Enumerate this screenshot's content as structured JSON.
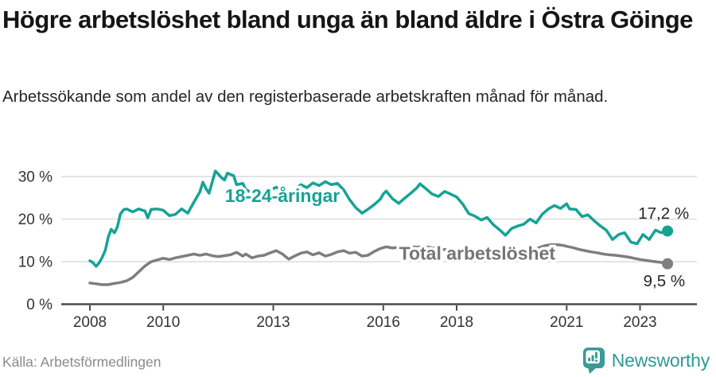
{
  "header": {
    "title": "Högre arbetslöshet bland unga än bland äldre i Östra Göinge",
    "subtitle": "Arbetssökande som andel av den registerbaserade arbetskraften månad för månad."
  },
  "footer": {
    "source": "Källa: Arbetsförmedlingen",
    "brand": "Newsworthy"
  },
  "colors": {
    "accent_teal": "#17a296",
    "line_gray": "#7e7e7e",
    "grid": "#dcdcdc",
    "axis": "#4a4a4a",
    "axis_label": "#333333",
    "end_label": "#262626",
    "logo_teal": "#3b9a94"
  },
  "chart_data": {
    "type": "line",
    "title": "",
    "xlabel": "",
    "ylabel": "",
    "x_ticks": [
      2008,
      2010,
      2013,
      2016,
      2018,
      2021,
      2023
    ],
    "y_ticks": [
      0,
      10,
      20,
      30
    ],
    "y_tick_suffix": " %",
    "xlim": [
      2008,
      2023.83
    ],
    "ylim": [
      0,
      33
    ],
    "grid": "horizontal",
    "legend_position": "inline-labels",
    "series": [
      {
        "name": "18-24-åringar",
        "color": "#17a296",
        "label": {
          "text": "18-24-åringar",
          "year": 2013.25,
          "value": 25.5,
          "color": "#17a296"
        },
        "end_label": "17,2 %",
        "end_value": 17.2,
        "points": [
          [
            2008.0,
            10.2
          ],
          [
            2008.08,
            9.8
          ],
          [
            2008.17,
            8.9
          ],
          [
            2008.25,
            9.7
          ],
          [
            2008.33,
            10.9
          ],
          [
            2008.42,
            12.7
          ],
          [
            2008.5,
            15.8
          ],
          [
            2008.58,
            17.6
          ],
          [
            2008.67,
            16.8
          ],
          [
            2008.75,
            18.2
          ],
          [
            2008.83,
            21.2
          ],
          [
            2008.92,
            22.2
          ],
          [
            2009.0,
            22.4
          ],
          [
            2009.17,
            21.7
          ],
          [
            2009.33,
            22.4
          ],
          [
            2009.5,
            21.9
          ],
          [
            2009.58,
            20.3
          ],
          [
            2009.67,
            22.3
          ],
          [
            2009.83,
            22.4
          ],
          [
            2010.0,
            22.1
          ],
          [
            2010.17,
            20.8
          ],
          [
            2010.33,
            21.1
          ],
          [
            2010.5,
            22.4
          ],
          [
            2010.67,
            21.4
          ],
          [
            2010.83,
            23.9
          ],
          [
            2011.0,
            26.4
          ],
          [
            2011.08,
            28.7
          ],
          [
            2011.17,
            27.1
          ],
          [
            2011.25,
            26.1
          ],
          [
            2011.42,
            31.3
          ],
          [
            2011.5,
            30.6
          ],
          [
            2011.58,
            29.8
          ],
          [
            2011.67,
            29.2
          ],
          [
            2011.75,
            30.8
          ],
          [
            2011.92,
            30.2
          ],
          [
            2012.0,
            28.1
          ],
          [
            2012.17,
            28.4
          ],
          [
            2012.25,
            27.0
          ],
          [
            2012.42,
            26.1
          ],
          [
            2012.58,
            26.9
          ],
          [
            2012.75,
            26.3
          ],
          [
            2012.92,
            26.9
          ],
          [
            2013.08,
            27.5
          ],
          [
            2013.25,
            26.6
          ],
          [
            2013.42,
            26.1
          ],
          [
            2013.58,
            26.8
          ],
          [
            2013.75,
            28.1
          ],
          [
            2013.92,
            27.4
          ],
          [
            2014.08,
            28.5
          ],
          [
            2014.25,
            27.9
          ],
          [
            2014.42,
            28.8
          ],
          [
            2014.58,
            28.1
          ],
          [
            2014.75,
            28.4
          ],
          [
            2014.92,
            26.9
          ],
          [
            2015.08,
            24.6
          ],
          [
            2015.25,
            22.7
          ],
          [
            2015.42,
            21.4
          ],
          [
            2015.58,
            22.3
          ],
          [
            2015.75,
            23.4
          ],
          [
            2015.92,
            24.7
          ],
          [
            2016.0,
            25.9
          ],
          [
            2016.08,
            26.6
          ],
          [
            2016.25,
            24.8
          ],
          [
            2016.42,
            23.7
          ],
          [
            2016.58,
            24.9
          ],
          [
            2016.75,
            26.1
          ],
          [
            2016.92,
            27.4
          ],
          [
            2017.0,
            28.3
          ],
          [
            2017.17,
            27.1
          ],
          [
            2017.33,
            25.9
          ],
          [
            2017.5,
            25.3
          ],
          [
            2017.67,
            26.5
          ],
          [
            2017.83,
            25.9
          ],
          [
            2018.0,
            25.2
          ],
          [
            2018.17,
            23.5
          ],
          [
            2018.33,
            21.3
          ],
          [
            2018.5,
            20.7
          ],
          [
            2018.67,
            19.8
          ],
          [
            2018.83,
            20.4
          ],
          [
            2019.0,
            18.7
          ],
          [
            2019.17,
            17.5
          ],
          [
            2019.33,
            16.2
          ],
          [
            2019.5,
            17.8
          ],
          [
            2019.67,
            18.4
          ],
          [
            2019.83,
            18.8
          ],
          [
            2020.0,
            20.0
          ],
          [
            2020.17,
            19.1
          ],
          [
            2020.33,
            21.1
          ],
          [
            2020.5,
            22.4
          ],
          [
            2020.67,
            23.2
          ],
          [
            2020.83,
            22.5
          ],
          [
            2021.0,
            23.6
          ],
          [
            2021.08,
            22.4
          ],
          [
            2021.25,
            22.3
          ],
          [
            2021.42,
            20.6
          ],
          [
            2021.58,
            21.0
          ],
          [
            2021.75,
            19.6
          ],
          [
            2021.92,
            18.4
          ],
          [
            2022.08,
            17.4
          ],
          [
            2022.25,
            15.2
          ],
          [
            2022.42,
            16.4
          ],
          [
            2022.58,
            16.8
          ],
          [
            2022.75,
            14.6
          ],
          [
            2022.92,
            14.2
          ],
          [
            2023.08,
            16.4
          ],
          [
            2023.25,
            15.2
          ],
          [
            2023.42,
            17.4
          ],
          [
            2023.58,
            16.8
          ],
          [
            2023.75,
            17.2
          ]
        ]
      },
      {
        "name": "Total arbetslöshet",
        "color": "#7e7e7e",
        "label": {
          "text": "Total arbetslöshet",
          "year": 2018.56,
          "value": 12.0,
          "color": "#757575"
        },
        "end_label": "9,5 %",
        "end_value": 9.5,
        "points": [
          [
            2008.0,
            5.0
          ],
          [
            2008.17,
            4.8
          ],
          [
            2008.33,
            4.6
          ],
          [
            2008.5,
            4.6
          ],
          [
            2008.67,
            4.9
          ],
          [
            2008.83,
            5.1
          ],
          [
            2009.0,
            5.5
          ],
          [
            2009.17,
            6.3
          ],
          [
            2009.33,
            7.6
          ],
          [
            2009.5,
            9.0
          ],
          [
            2009.67,
            10.0
          ],
          [
            2009.83,
            10.4
          ],
          [
            2010.0,
            10.8
          ],
          [
            2010.17,
            10.5
          ],
          [
            2010.33,
            10.9
          ],
          [
            2010.5,
            11.2
          ],
          [
            2010.67,
            11.5
          ],
          [
            2010.83,
            11.8
          ],
          [
            2011.0,
            11.5
          ],
          [
            2011.17,
            11.8
          ],
          [
            2011.33,
            11.4
          ],
          [
            2011.5,
            11.2
          ],
          [
            2011.67,
            11.4
          ],
          [
            2011.83,
            11.6
          ],
          [
            2012.0,
            12.2
          ],
          [
            2012.17,
            11.3
          ],
          [
            2012.25,
            11.8
          ],
          [
            2012.42,
            10.9
          ],
          [
            2012.58,
            11.3
          ],
          [
            2012.75,
            11.5
          ],
          [
            2012.92,
            12.1
          ],
          [
            2013.08,
            12.6
          ],
          [
            2013.25,
            11.8
          ],
          [
            2013.42,
            10.6
          ],
          [
            2013.58,
            11.3
          ],
          [
            2013.75,
            12.0
          ],
          [
            2013.92,
            12.3
          ],
          [
            2014.08,
            11.6
          ],
          [
            2014.25,
            12.1
          ],
          [
            2014.42,
            11.3
          ],
          [
            2014.58,
            11.7
          ],
          [
            2014.75,
            12.3
          ],
          [
            2014.92,
            12.6
          ],
          [
            2015.08,
            12.0
          ],
          [
            2015.25,
            12.2
          ],
          [
            2015.42,
            11.3
          ],
          [
            2015.58,
            11.5
          ],
          [
            2015.75,
            12.4
          ],
          [
            2015.92,
            13.1
          ],
          [
            2016.08,
            13.5
          ],
          [
            2016.25,
            13.2
          ],
          [
            2016.42,
            13.4
          ],
          [
            2016.58,
            13.6
          ],
          [
            2016.75,
            13.5
          ],
          [
            2016.92,
            13.4
          ],
          [
            2017.08,
            13.6
          ],
          [
            2017.25,
            13.4
          ],
          [
            2017.42,
            13.1
          ],
          [
            2017.58,
            12.9
          ],
          [
            2017.75,
            12.8
          ],
          [
            2017.92,
            12.6
          ],
          [
            2018.08,
            12.4
          ],
          [
            2018.25,
            12.2
          ],
          [
            2018.42,
            12.1
          ],
          [
            2018.58,
            11.9
          ],
          [
            2018.75,
            11.8
          ],
          [
            2018.92,
            11.7
          ],
          [
            2019.08,
            11.6
          ],
          [
            2019.25,
            11.5
          ],
          [
            2019.42,
            11.6
          ],
          [
            2019.58,
            11.8
          ],
          [
            2019.75,
            12.0
          ],
          [
            2019.92,
            12.2
          ],
          [
            2020.08,
            12.7
          ],
          [
            2020.25,
            13.3
          ],
          [
            2020.42,
            13.8
          ],
          [
            2020.58,
            14.0
          ],
          [
            2020.75,
            14.0
          ],
          [
            2020.92,
            13.8
          ],
          [
            2021.0,
            13.6
          ],
          [
            2021.17,
            13.3
          ],
          [
            2021.33,
            12.9
          ],
          [
            2021.5,
            12.6
          ],
          [
            2021.67,
            12.3
          ],
          [
            2021.83,
            12.1
          ],
          [
            2022.0,
            11.8
          ],
          [
            2022.17,
            11.6
          ],
          [
            2022.33,
            11.5
          ],
          [
            2022.5,
            11.3
          ],
          [
            2022.67,
            11.1
          ],
          [
            2022.83,
            10.8
          ],
          [
            2023.0,
            10.5
          ],
          [
            2023.17,
            10.3
          ],
          [
            2023.33,
            10.1
          ],
          [
            2023.5,
            9.9
          ],
          [
            2023.67,
            9.7
          ],
          [
            2023.75,
            9.5
          ]
        ]
      }
    ]
  }
}
